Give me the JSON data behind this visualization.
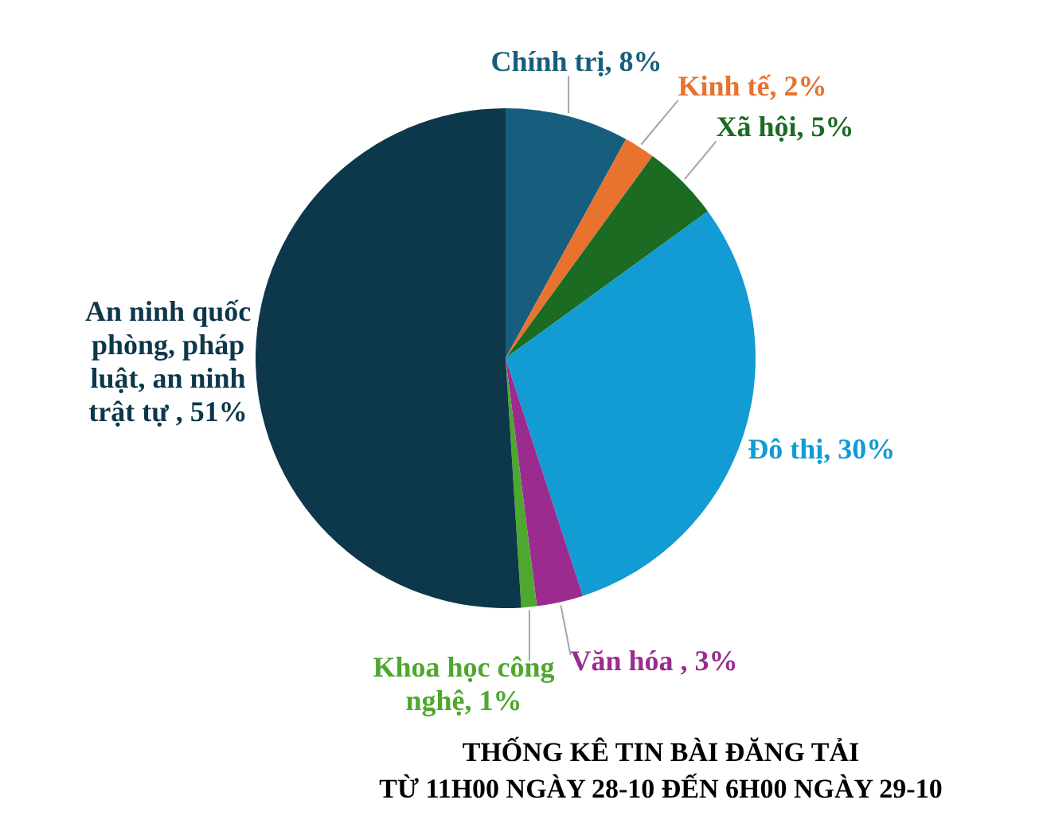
{
  "chart_data": {
    "type": "pie",
    "title": "THỐNG KÊ TIN BÀI ĐĂNG TẢI\nTỪ 11H00 NGÀY 28-10 ĐẾN 6H00 NGÀY 29-10",
    "categories": [
      "Chính trị",
      "Kinh tế",
      "Xã hội",
      "Đô thị",
      "Văn hóa ",
      "Khoa học công nghệ",
      "An ninh quốc phòng, pháp luật, an ninh trật tự "
    ],
    "values": [
      8,
      2,
      5,
      30,
      3,
      1,
      51
    ],
    "colors": [
      "#175e7e",
      "#e8722e",
      "#1b6b23",
      "#139bd3",
      "#9c2b8f",
      "#4ea72e",
      "#0d374b"
    ],
    "value_labels": [
      "8%",
      "2%",
      "5%",
      "30%",
      "3%",
      "1%",
      "51%"
    ]
  }
}
